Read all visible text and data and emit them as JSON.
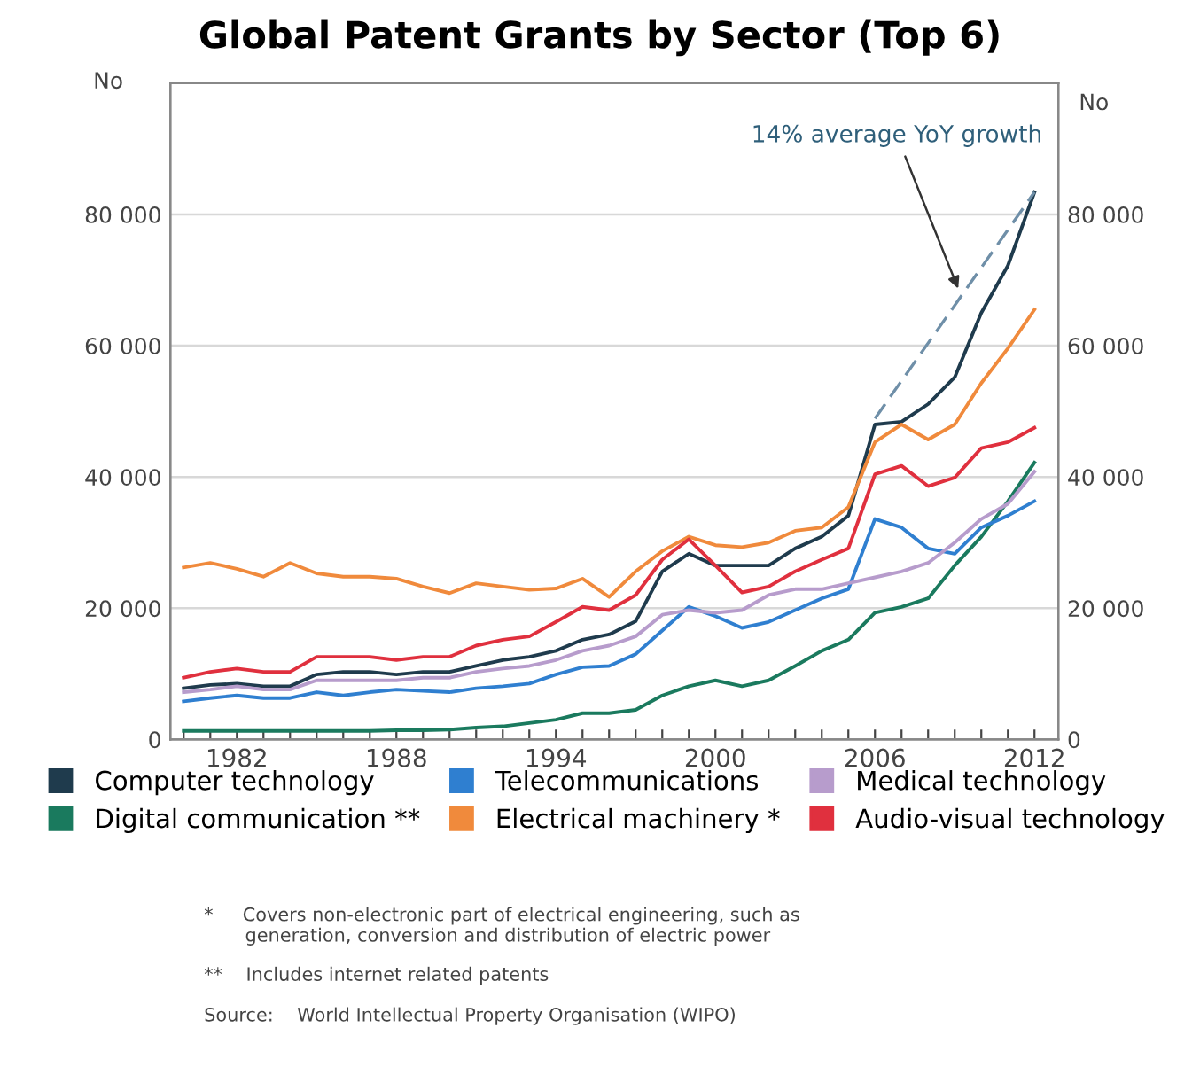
{
  "chart_data": {
    "type": "line",
    "title": "Global Patent Grants by Sector (Top 6)",
    "ylabel": "No",
    "y2label": "No",
    "x": [
      1980,
      1981,
      1982,
      1983,
      1984,
      1985,
      1986,
      1987,
      1988,
      1989,
      1990,
      1991,
      1992,
      1993,
      1994,
      1995,
      1996,
      1997,
      1998,
      1999,
      2000,
      2001,
      2002,
      2003,
      2004,
      2005,
      2006,
      2007,
      2008,
      2009,
      2010,
      2011,
      2012
    ],
    "series": [
      {
        "name": "Computer technology",
        "color": "#1f3b4d",
        "values": [
          7800.0,
          8300.0,
          8500.0,
          8100.0,
          8100.0,
          9900.0,
          10300.0,
          10300.0,
          9900.0,
          10300.0,
          10300.0,
          11200.0,
          12100.0,
          12600.0,
          13500.0,
          15200.0,
          16000.0,
          18000.0,
          25600.0,
          28300.0,
          26500.0,
          26500.0,
          26500.0,
          29100.0,
          30900.0,
          34100.0,
          48000.0,
          48400.0,
          51100.0,
          55200.0,
          65000.0,
          72200.0,
          83400.0
        ]
      },
      {
        "name": "Digital communication **",
        "color": "#1a7a5e",
        "values": [
          1300.0,
          1300.0,
          1300.0,
          1300.0,
          1300.0,
          1300.0,
          1300.0,
          1300.0,
          1400.0,
          1400.0,
          1500.0,
          1800.0,
          2000.0,
          2500.0,
          3000.0,
          4000.0,
          4000.0,
          4500.0,
          6700.0,
          8100.0,
          9000.0,
          8100.0,
          9000.0,
          11200.0,
          13500.0,
          15200.0,
          19300.0,
          20200.0,
          21500.0,
          26500.0,
          30900.0,
          36300.0,
          42200.0
        ]
      },
      {
        "name": "Telecommunications",
        "color": "#2f7fd0",
        "values": [
          5800.0,
          6300.0,
          6700.0,
          6300.0,
          6300.0,
          7200.0,
          6700.0,
          7200.0,
          7600.0,
          7400.0,
          7200.0,
          7800.0,
          8100.0,
          8500.0,
          9900.0,
          11000.0,
          11200.0,
          13000.0,
          16600.0,
          20200.0,
          18800.0,
          17000.0,
          17900.0,
          19700.0,
          21500.0,
          22900.0,
          33600.0,
          32300.0,
          29100.0,
          28300.0,
          32300.0,
          34100.0,
          36300.0
        ]
      },
      {
        "name": "Electrical machinery *",
        "color": "#f08a3c",
        "values": [
          26200.0,
          26900.0,
          26000.0,
          24800.0,
          26900.0,
          25300.0,
          24800.0,
          24800.0,
          24500.0,
          23300.0,
          22300.0,
          23800.0,
          23300.0,
          22800.0,
          23000.0,
          24500.0,
          21700.0,
          25600.0,
          28700.0,
          30900.0,
          29600.0,
          29300.0,
          30000.0,
          31800.0,
          32300.0,
          35400.0,
          45300.0,
          48000.0,
          45700.0,
          48000.0,
          54300.0,
          59600.0,
          65500.0
        ]
      },
      {
        "name": "Medical technology",
        "color": "#b79ccc",
        "values": [
          7200.0,
          7600.0,
          8100.0,
          7600.0,
          7600.0,
          9000.0,
          9000.0,
          9000.0,
          9000.0,
          9400.0,
          9400.0,
          10300.0,
          10800.0,
          11200.0,
          12100.0,
          13500.0,
          14300.0,
          15700.0,
          19000.0,
          19700.0,
          19300.0,
          19700.0,
          22000.0,
          22900.0,
          22900.0,
          23800.0,
          24700.0,
          25600.0,
          26900.0,
          30000.0,
          33600.0,
          35900.0,
          40800.0
        ]
      },
      {
        "name": "Audio-visual technology",
        "color": "#e0303e",
        "values": [
          9400.0,
          10300.0,
          10800.0,
          10300.0,
          10300.0,
          12600.0,
          12600.0,
          12600.0,
          12100.0,
          12600.0,
          12600.0,
          14300.0,
          15200.0,
          15700.0,
          17900.0,
          20200.0,
          19700.0,
          22000.0,
          27400.0,
          30500.0,
          26500.0,
          22400.0,
          23300.0,
          25600.0,
          27400.0,
          29100.0,
          40400.0,
          41700.0,
          38600.0,
          39900.0,
          44400.0,
          45300.0,
          47500.0
        ]
      },
      {
        "type": "line",
        "color": "#6f8fa8",
        "line_style": "dashed",
        "x": [
          2006,
          2012
        ],
        "values": [
          48900.0,
          83400.0
        ]
      }
    ],
    "xlim": [
      1979.5,
      2012.9
    ],
    "xticks": [
      {
        "value": 1980,
        "label": null
      },
      {
        "value": 1981,
        "label": null
      },
      1982,
      {
        "value": 1983,
        "label": null
      },
      {
        "value": 1984,
        "label": null
      },
      {
        "value": 1985,
        "label": null
      },
      {
        "value": 1986,
        "label": null
      },
      {
        "value": 1987,
        "label": null
      },
      1988,
      {
        "value": 1989,
        "label": null
      },
      {
        "value": 1990,
        "label": null
      },
      {
        "value": 1991,
        "label": null
      },
      {
        "value": 1992,
        "label": null
      },
      {
        "value": 1993,
        "label": null
      },
      1994,
      {
        "value": 1995,
        "label": null
      },
      {
        "value": 1996,
        "label": null
      },
      {
        "value": 1997,
        "label": null
      },
      {
        "value": 1998,
        "label": null
      },
      {
        "value": 1999,
        "label": null
      },
      2000,
      {
        "value": 2001,
        "label": null
      },
      {
        "value": 2002,
        "label": null
      },
      {
        "value": 2003,
        "label": null
      },
      {
        "value": 2004,
        "label": null
      },
      {
        "value": 2005,
        "label": null
      },
      2006,
      {
        "value": 2007,
        "label": null
      },
      {
        "value": 2008,
        "label": null
      },
      {
        "value": 2009,
        "label": null
      },
      {
        "value": 2010,
        "label": null
      },
      {
        "value": 2011,
        "label": null
      },
      2012
    ],
    "ylim": [
      0,
      100000
    ],
    "yticks": [
      0,
      {
        "value": 20000,
        "label": "20 000"
      },
      {
        "value": 40000,
        "label": "40 000"
      },
      {
        "value": 60000,
        "label": "60 000"
      },
      {
        "value": 80000,
        "label": "80 000"
      }
    ],
    "y2lim": [
      0,
      100000
    ],
    "y2ticks": [
      0,
      {
        "value": 20000,
        "label": "20 000"
      },
      {
        "value": 40000,
        "label": "40 000"
      },
      {
        "value": 60000,
        "label": "60 000"
      },
      {
        "value": 80000,
        "label": "80 000"
      }
    ],
    "grid": "y",
    "legend": "bottom",
    "marker": "none",
    "line_style": "solid",
    "annotations": [
      {
        "text": "14% average YoY growth",
        "x": 2009.2,
        "y": 68000
      },
      "*     Covers non-electronic part of electrical engineering, such as\n       generation, conversion and distribution of electric power",
      "**    Includes internet related patents",
      "Source:    World Intellectual Property Organisation (WIPO)"
    ]
  }
}
